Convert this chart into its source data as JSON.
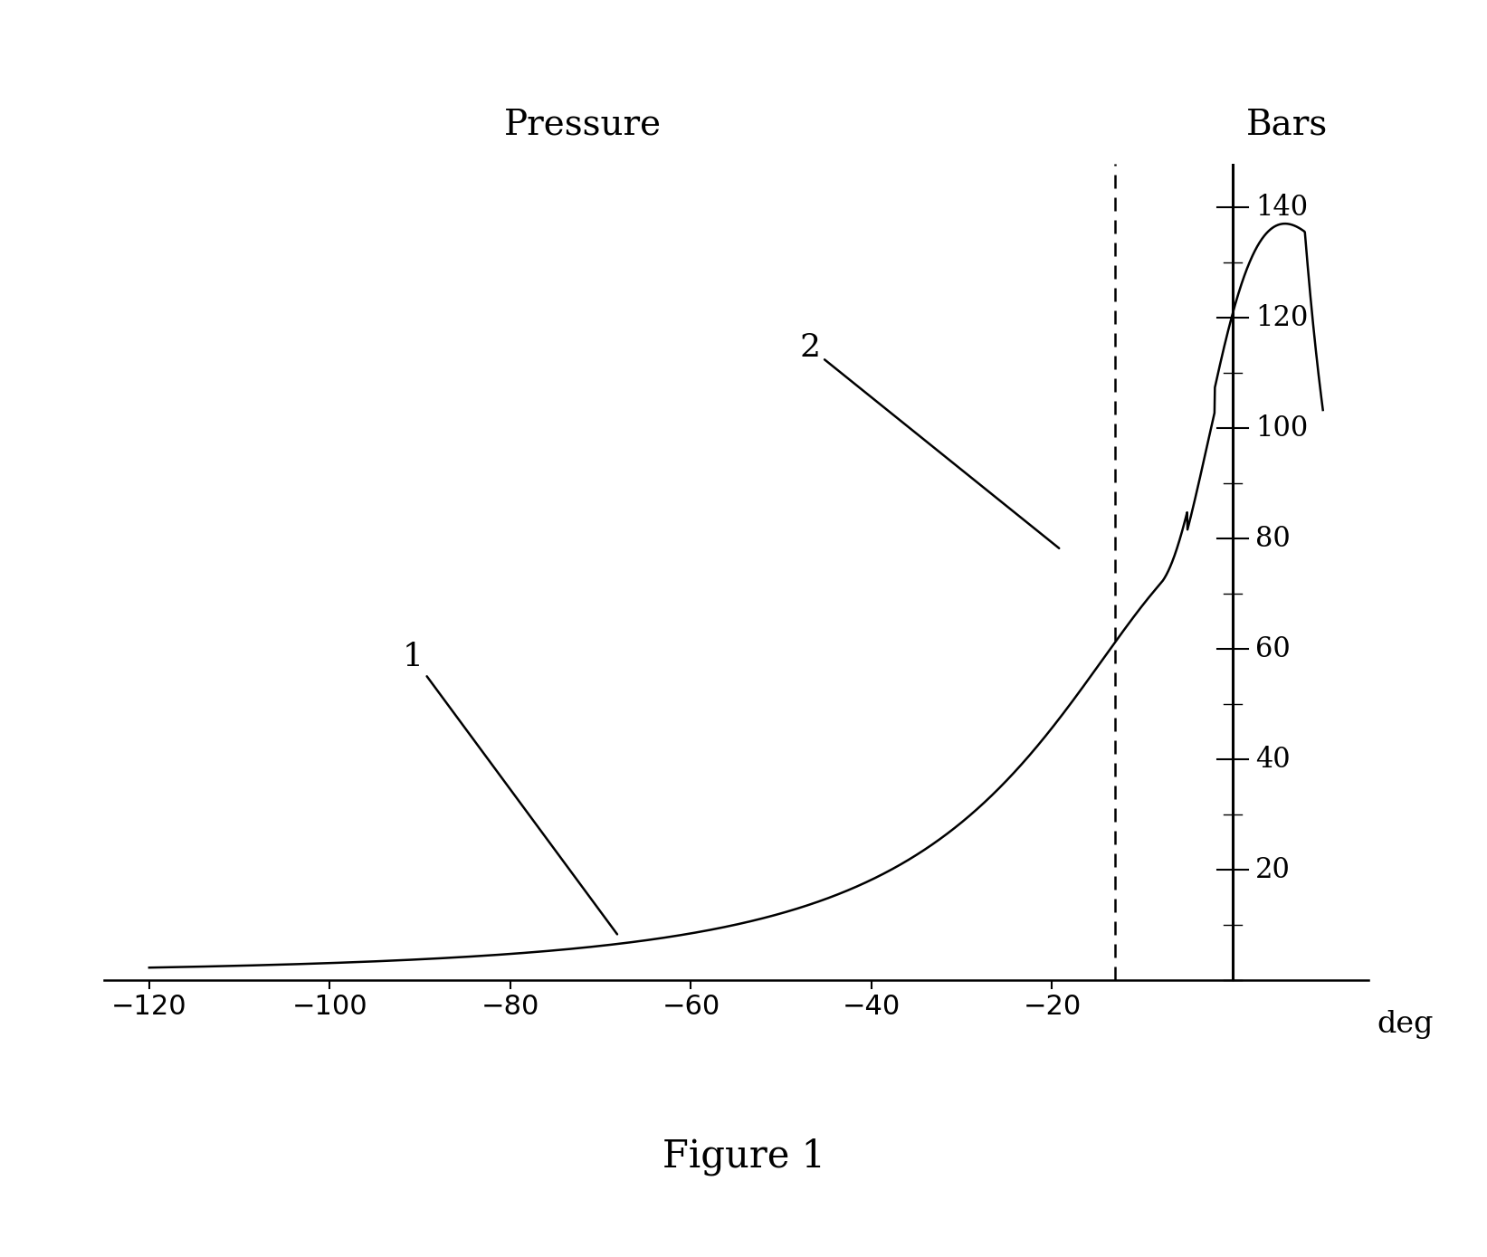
{
  "title": "Figure 1",
  "xlabel": "deg",
  "ylabel_right": "Bars",
  "ylabel_left": "Pressure",
  "x_min": -125,
  "x_max": 15,
  "y_min": 0,
  "y_max": 148,
  "xticks": [
    -120,
    -100,
    -80,
    -60,
    -40,
    -20
  ],
  "yticks": [
    20,
    40,
    60,
    80,
    100,
    120,
    140
  ],
  "dashed_vline_x": -13,
  "solid_vline_x": 0,
  "annotation1": "1",
  "annotation2": "2",
  "background_color": "#ffffff",
  "line_color": "#000000",
  "figure_caption": "Figure 1",
  "gamma": 1.35,
  "compression_ratio": 18.0,
  "P_at_TDC_motored": 80.0,
  "combustion_start": -8.0,
  "combustion_dP_max": 65.0,
  "notch_start": -5.0,
  "notch_end": -2.0,
  "notch_factor": 0.96
}
